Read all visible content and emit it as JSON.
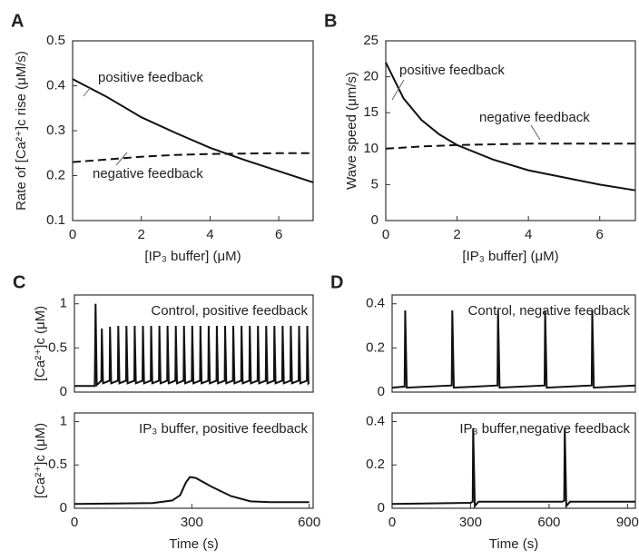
{
  "chart_data": [
    {
      "type": "line",
      "label": "A",
      "xlabel": "[IP₃ buffer] (μM)",
      "ylabel": "Rate of [Ca²⁺]c rise (μM/s)",
      "xlim": [
        0,
        7
      ],
      "ylim": [
        0.1,
        0.5
      ],
      "xticks": [
        0,
        2,
        4,
        6
      ],
      "yticks": [
        0.1,
        0.2,
        0.3,
        0.4,
        0.5
      ],
      "series": [
        {
          "name": "positive feedback",
          "color": "#111111",
          "style": "solid",
          "x": [
            0,
            1,
            2,
            3,
            4,
            5,
            6,
            7
          ],
          "values": [
            0.415,
            0.375,
            0.33,
            0.295,
            0.262,
            0.235,
            0.21,
            0.185
          ]
        },
        {
          "name": "negative feedback",
          "color": "#111111",
          "style": "dashed",
          "x": [
            0,
            1,
            2,
            3,
            4,
            5,
            6,
            7
          ],
          "values": [
            0.23,
            0.236,
            0.242,
            0.246,
            0.248,
            0.249,
            0.25,
            0.25
          ]
        }
      ]
    },
    {
      "type": "line",
      "label": "B",
      "xlabel": "[IP₃ buffer] (μM)",
      "ylabel": "Wave speed (μm/s)",
      "xlim": [
        0,
        7
      ],
      "ylim": [
        0,
        25
      ],
      "xticks": [
        0,
        2,
        4,
        6
      ],
      "yticks": [
        0,
        5,
        10,
        15,
        20,
        25
      ],
      "series": [
        {
          "name": "positive feedback",
          "color": "#111111",
          "style": "solid",
          "x": [
            0,
            0.5,
            1,
            1.5,
            2,
            3,
            4,
            5,
            6,
            7
          ],
          "values": [
            22,
            17,
            14,
            12,
            10.5,
            8.5,
            7,
            6,
            5,
            4.2
          ]
        },
        {
          "name": "negative feedback",
          "color": "#111111",
          "style": "dashed",
          "x": [
            0,
            1,
            2,
            3,
            4,
            7
          ],
          "values": [
            10,
            10.3,
            10.5,
            10.6,
            10.7,
            10.7
          ]
        }
      ]
    },
    {
      "type": "line",
      "label": "C",
      "title": "Control, positive feedback",
      "ylabel": "[Ca²⁺]c (μM)",
      "xlim": [
        0,
        610
      ],
      "ylim": [
        0,
        1.1
      ],
      "yticks": [
        0,
        0.5,
        1
      ],
      "series": [
        {
          "color": "#111111",
          "style": "solid",
          "x": [
            0,
            52,
            54,
            57,
            69,
            70,
            73,
            90,
            91,
            94,
            111,
            112,
            115,
            132,
            133,
            136,
            153,
            154,
            157,
            174,
            175,
            178,
            195,
            196,
            199,
            216,
            217,
            220,
            237,
            238,
            241,
            258,
            259,
            262,
            279,
            280,
            283,
            300,
            301,
            304,
            321,
            322,
            325,
            342,
            343,
            346,
            363,
            364,
            367,
            384,
            385,
            388,
            405,
            406,
            409,
            426,
            427,
            430,
            447,
            448,
            451,
            468,
            469,
            472,
            489,
            490,
            493,
            510,
            511,
            514,
            531,
            532,
            535,
            552,
            553,
            556,
            573,
            574,
            577,
            594,
            595,
            598,
            600
          ],
          "values": [
            0.07,
            0.07,
            1.0,
            0.08,
            0.13,
            0.72,
            0.1,
            0.13,
            0.74,
            0.1,
            0.13,
            0.75,
            0.1,
            0.13,
            0.75,
            0.1,
            0.13,
            0.75,
            0.1,
            0.13,
            0.75,
            0.1,
            0.13,
            0.75,
            0.1,
            0.13,
            0.75,
            0.1,
            0.13,
            0.75,
            0.1,
            0.13,
            0.75,
            0.1,
            0.13,
            0.75,
            0.1,
            0.13,
            0.75,
            0.1,
            0.13,
            0.75,
            0.1,
            0.13,
            0.75,
            0.1,
            0.13,
            0.75,
            0.1,
            0.13,
            0.75,
            0.1,
            0.13,
            0.75,
            0.1,
            0.13,
            0.75,
            0.1,
            0.13,
            0.75,
            0.1,
            0.13,
            0.75,
            0.1,
            0.13,
            0.75,
            0.1,
            0.13,
            0.75,
            0.1,
            0.13,
            0.75,
            0.1,
            0.13,
            0.75,
            0.1,
            0.13,
            0.75,
            0.1,
            0.13,
            0.75,
            0.1,
            0.11
          ]
        }
      ]
    },
    {
      "type": "line",
      "title": "IP₃ buffer, positive feedback",
      "ylabel": "[Ca²⁺]c (μM)",
      "xlabel": "Time (s)",
      "xlim": [
        0,
        610
      ],
      "ylim": [
        0,
        1.1
      ],
      "xticks": [
        0,
        300,
        600
      ],
      "yticks": [
        0,
        0.5,
        1
      ],
      "series": [
        {
          "color": "#111111",
          "style": "solid",
          "x": [
            0,
            200,
            250,
            270,
            285,
            295,
            310,
            350,
            400,
            450,
            500,
            600
          ],
          "values": [
            0.05,
            0.06,
            0.09,
            0.15,
            0.3,
            0.36,
            0.35,
            0.25,
            0.14,
            0.08,
            0.07,
            0.07
          ]
        }
      ]
    },
    {
      "type": "line",
      "label": "D",
      "title": "Control, negative feedback",
      "xlim": [
        0,
        930
      ],
      "ylim": [
        0,
        0.44
      ],
      "yticks": [
        0,
        0.2,
        0.4
      ],
      "series": [
        {
          "color": "#111111",
          "style": "solid",
          "x": [
            0,
            48,
            50,
            56,
            228,
            230,
            236,
            403,
            405,
            411,
            583,
            585,
            591,
            763,
            765,
            771,
            930
          ],
          "values": [
            0.02,
            0.025,
            0.37,
            0.02,
            0.03,
            0.37,
            0.02,
            0.03,
            0.37,
            0.02,
            0.03,
            0.37,
            0.02,
            0.03,
            0.37,
            0.02,
            0.03
          ]
        }
      ]
    },
    {
      "type": "line",
      "title": "IP₃ buffer,negative feedback",
      "xlabel": "Time (s)",
      "xlim": [
        0,
        930
      ],
      "ylim": [
        0,
        0.44
      ],
      "xticks": [
        0,
        300,
        600,
        900
      ],
      "yticks": [
        0,
        0.2,
        0.4
      ],
      "series": [
        {
          "color": "#111111",
          "style": "solid",
          "x": [
            0,
            300,
            308,
            310,
            316,
            330,
            650,
            658,
            660,
            666,
            680,
            930
          ],
          "values": [
            0.02,
            0.025,
            0.03,
            0.37,
            0.01,
            0.03,
            0.03,
            0.035,
            0.37,
            0.01,
            0.03,
            0.03
          ]
        }
      ]
    }
  ]
}
